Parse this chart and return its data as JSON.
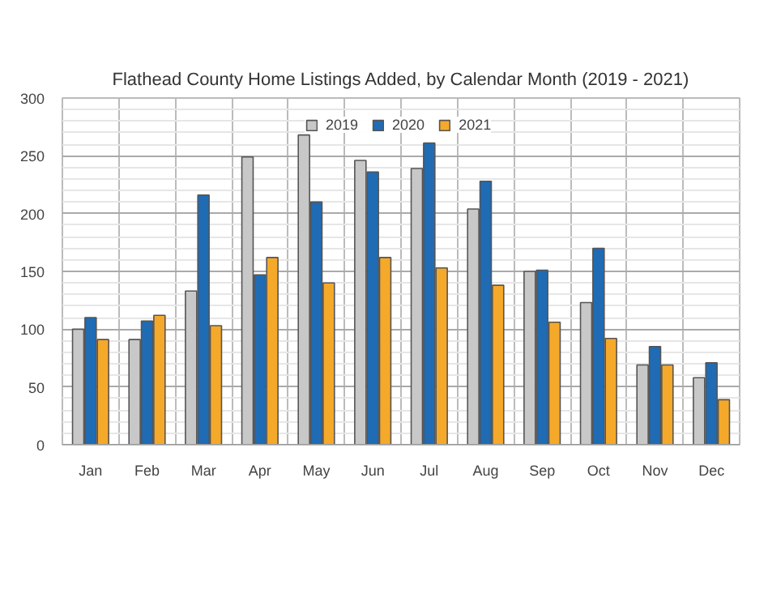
{
  "chart_data": {
    "type": "bar",
    "title": "Flathead County Home Listings Added, by Calendar Month (2019 - 2021)",
    "categories": [
      "Jan",
      "Feb",
      "Mar",
      "Apr",
      "May",
      "Jun",
      "Jul",
      "Aug",
      "Sep",
      "Oct",
      "Nov",
      "Dec"
    ],
    "series": [
      {
        "name": "2019",
        "color": "#c8c8c8",
        "values": [
          100,
          91,
          133,
          249,
          268,
          246,
          239,
          204,
          150,
          123,
          69,
          58
        ]
      },
      {
        "name": "2020",
        "color": "#1f6bb4",
        "values": [
          110,
          107,
          216,
          147,
          210,
          236,
          261,
          228,
          151,
          170,
          85,
          71
        ]
      },
      {
        "name": "2021",
        "color": "#f5a92a",
        "values": [
          91,
          112,
          103,
          162,
          140,
          162,
          153,
          138,
          106,
          92,
          69,
          39
        ]
      }
    ],
    "ylim": [
      0,
      300
    ],
    "yticks": [
      0,
      50,
      100,
      150,
      200,
      250,
      300
    ],
    "grid": true,
    "legend": "top"
  }
}
